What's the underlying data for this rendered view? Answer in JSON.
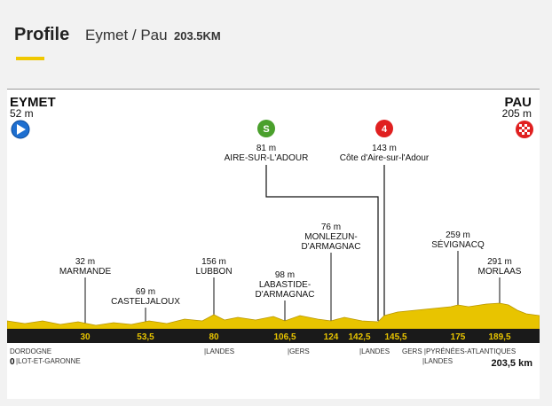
{
  "header": {
    "tab_label": "Profile",
    "route": "Eymet / Pau",
    "distance": "203.5KM",
    "accent": "#f0c800"
  },
  "start": {
    "name": "EYMET",
    "altitude": "52 m",
    "icon": "start-play-icon",
    "color": "#1e6fd0"
  },
  "finish": {
    "name": "PAU",
    "altitude": "205 m",
    "icon": "finish-checkered-flag-icon",
    "color": "#e02020"
  },
  "sprint": {
    "badge": "S",
    "altitude": "81 m",
    "name": "AIRE-SUR-L'ADOUR",
    "color": "#4aa02c"
  },
  "climb": {
    "badge": "4",
    "altitude": "143 m",
    "name": "Côte d'Aire-sur-l'Adour",
    "color": "#e02020"
  },
  "towns": [
    {
      "alt": "32 m",
      "name": "MARMANDE"
    },
    {
      "alt": "69 m",
      "name": "CASTELJALOUX"
    },
    {
      "alt": "156 m",
      "name": "LUBBON"
    },
    {
      "alt": "98 m",
      "name1": "LABASTIDE-",
      "name2": "D'ARMAGNAC"
    },
    {
      "alt": "76 m",
      "name1": "MONLEZUN-",
      "name2": "D'ARMAGNAC"
    },
    {
      "alt": "259 m",
      "name": "SÉVIGNACQ"
    },
    {
      "alt": "291 m",
      "name": "MORLAAS"
    }
  ],
  "km_markers": [
    "30",
    "53,5",
    "80",
    "106,5",
    "124",
    "142,5",
    "145,5",
    "175",
    "189,5"
  ],
  "bottom": {
    "zero": "0",
    "total": "203,5 km",
    "regions": [
      "DORDOGNE",
      "|LOT-ET-GARONNE",
      "|LANDES",
      "|GERS",
      "|LANDES",
      "GERS |PYRÉNÉES-ATLANTIQUES",
      "|LANDES"
    ]
  },
  "profile_fill": "#e8c400",
  "band_color": "#1a1a1a"
}
